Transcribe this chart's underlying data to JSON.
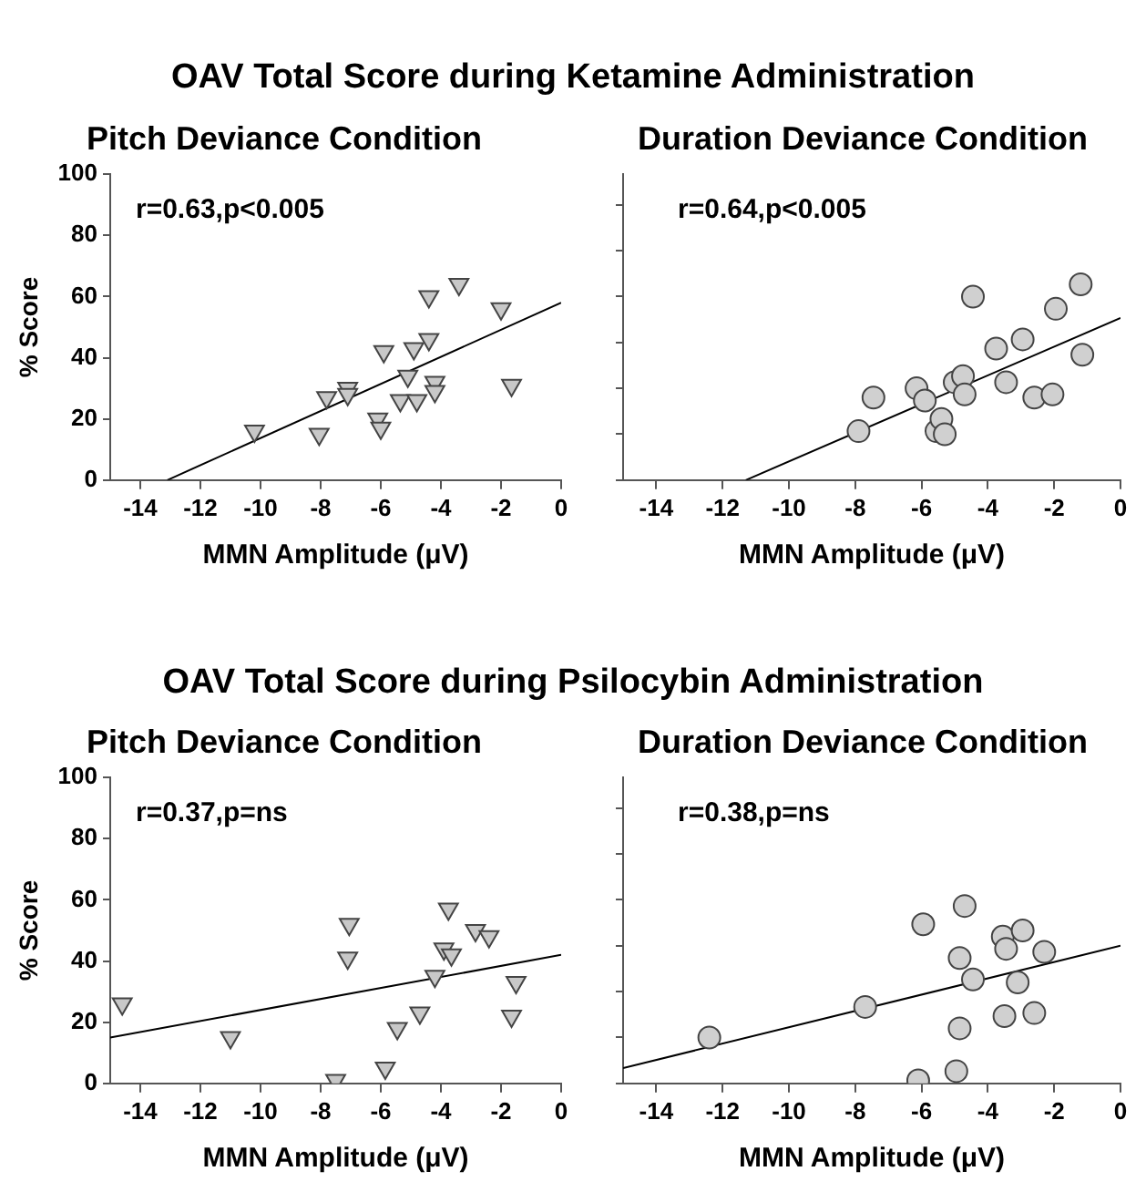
{
  "chart_data": [
    {
      "type": "scatter",
      "subtitle": "OAV Total Score during Ketamine Administration",
      "title": "Pitch Deviance Condition",
      "xlabel": "MMN Amplitude (μV)",
      "ylabel": "% Score",
      "annotations": [
        "r=0.63,p<0.005"
      ],
      "xlim": [
        -15,
        0
      ],
      "xticks": [
        -14,
        -12,
        -10,
        -8,
        -6,
        -4,
        -2,
        0
      ],
      "ylim": [
        0,
        100
      ],
      "yticks": [
        0,
        20,
        40,
        60,
        80,
        100
      ],
      "grid": false,
      "legend": false,
      "marker": "triangle",
      "series": [
        {
          "color": "#c8c8c8",
          "x": [
            -10.2,
            -8.05,
            -7.8,
            -7.1,
            -7.1,
            -5.9,
            -6.1,
            -6.0,
            -5.35,
            -5.1,
            -4.9,
            -4.8,
            -4.4,
            -4.4,
            -4.2,
            -4.2,
            -3.4,
            -2.0,
            -1.65
          ],
          "values": [
            16,
            15,
            27,
            30,
            28,
            42,
            20,
            17,
            26,
            34,
            43,
            26,
            46,
            60,
            32,
            29,
            64,
            56,
            31
          ]
        },
        {
          "type": "line",
          "color": "#000000",
          "marker": "none",
          "x": [
            -13.1,
            0
          ],
          "values": [
            0,
            58
          ]
        }
      ]
    },
    {
      "type": "scatter",
      "title": "Duration Deviance Condition",
      "xlabel": "MMN Amplitude (μV)",
      "annotations": [
        "r=0.64,p<0.005"
      ],
      "xlim": [
        -15,
        0
      ],
      "xticks": [
        -14,
        -12,
        -10,
        -8,
        -6,
        -4,
        -2,
        0
      ],
      "ylim": [
        0,
        100
      ],
      "yticks": [
        {
          "value": 0,
          "label": null
        },
        {
          "value": 15,
          "label": null
        },
        {
          "value": 30,
          "label": null
        },
        {
          "value": 45,
          "label": null
        },
        {
          "value": 60,
          "label": null
        },
        {
          "value": 75,
          "label": null
        },
        {
          "value": 90,
          "label": null
        }
      ],
      "tick_labels": "x",
      "grid": false,
      "legend": false,
      "marker": "circle",
      "series": [
        {
          "color": "#d0d0d0",
          "x": [
            -7.9,
            -7.45,
            -6.15,
            -5.9,
            -5.55,
            -5.4,
            -5.3,
            -5.0,
            -4.75,
            -4.7,
            -4.45,
            -3.75,
            -3.45,
            -2.95,
            -2.6,
            -2.05,
            -1.95,
            -1.2,
            -1.15
          ],
          "values": [
            16,
            27,
            30,
            26,
            16,
            20,
            15,
            32,
            34,
            28,
            60,
            43,
            32,
            46,
            27,
            28,
            56,
            64,
            41
          ]
        },
        {
          "type": "line",
          "color": "#000000",
          "marker": "none",
          "x": [
            -11.3,
            0
          ],
          "values": [
            0,
            53
          ]
        }
      ]
    },
    {
      "type": "scatter",
      "subtitle": "OAV Total Score during Psilocybin Administration",
      "title": "Pitch Deviance Condition",
      "xlabel": "MMN Amplitude (μV)",
      "ylabel": "% Score",
      "annotations": [
        "r=0.37,p=ns"
      ],
      "xlim": [
        -15,
        0
      ],
      "xticks": [
        -14,
        -12,
        -10,
        -8,
        -6,
        -4,
        -2,
        0
      ],
      "ylim": [
        0,
        100
      ],
      "yticks": [
        0,
        20,
        40,
        60,
        80,
        100
      ],
      "grid": false,
      "legend": false,
      "marker": "triangle",
      "series": [
        {
          "color": "#c8c8c8",
          "x": [
            -14.6,
            -11.0,
            -7.5,
            -7.05,
            -7.1,
            -5.85,
            -5.45,
            -4.7,
            -4.2,
            -3.9,
            -3.65,
            -3.75,
            -2.85,
            -2.4,
            -1.5,
            -1.65
          ],
          "values": [
            26,
            15,
            1,
            52,
            41,
            5,
            18,
            23,
            35,
            44,
            42,
            57,
            50,
            48,
            33,
            22
          ]
        },
        {
          "type": "line",
          "color": "#000000",
          "marker": "none",
          "x": [
            -15,
            0
          ],
          "values": [
            15,
            42
          ]
        }
      ]
    },
    {
      "type": "scatter",
      "title": "Duration Deviance Condition",
      "xlabel": "MMN Amplitude (μV)",
      "annotations": [
        "r=0.38,p=ns"
      ],
      "xlim": [
        -15,
        0
      ],
      "xticks": [
        -14,
        -12,
        -10,
        -8,
        -6,
        -4,
        -2,
        0
      ],
      "ylim": [
        0,
        100
      ],
      "yticks": [
        {
          "value": 0,
          "label": null
        },
        {
          "value": 15,
          "label": null
        },
        {
          "value": 30,
          "label": null
        },
        {
          "value": 45,
          "label": null
        },
        {
          "value": 60,
          "label": null
        },
        {
          "value": 75,
          "label": null
        },
        {
          "value": 90,
          "label": null
        }
      ],
      "tick_labels": "x",
      "grid": false,
      "legend": false,
      "marker": "circle",
      "series": [
        {
          "color": "#d0d0d0",
          "x": [
            -12.4,
            -7.7,
            -6.1,
            -5.95,
            -4.7,
            -4.85,
            -4.85,
            -4.95,
            -4.45,
            -3.55,
            -3.45,
            -2.95,
            -3.1,
            -3.5,
            -2.6,
            -2.3
          ],
          "values": [
            15,
            25,
            1,
            52,
            58,
            41,
            18,
            4,
            34,
            48,
            44,
            50,
            33,
            22,
            23,
            43
          ]
        },
        {
          "type": "line",
          "color": "#000000",
          "marker": "none",
          "x": [
            -15,
            0
          ],
          "values": [
            5,
            45
          ]
        }
      ]
    }
  ]
}
